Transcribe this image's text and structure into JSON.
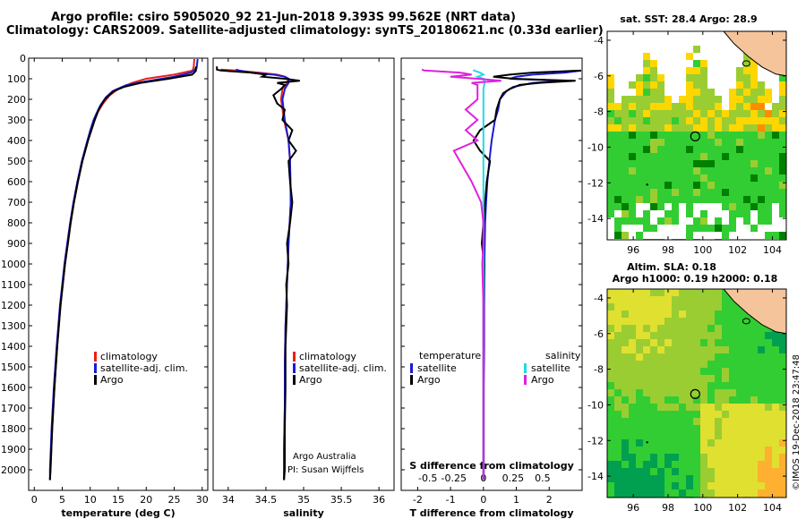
{
  "header": {
    "line1": "Argo profile: csiro 5905020_92 21-Jun-2018 9.393S 99.562E (NRT data)",
    "line2": "Climatology: CARS2009. Satellite-adjusted climatology: synTS_20180621.nc (0.33d earlier)"
  },
  "credits": {
    "imos": "©IMOS 19-Dec-2018 23:47:48",
    "argo": "Argo Australia",
    "pi": "PI: Susan Wijffels"
  },
  "colors": {
    "climatology": "#e8201c",
    "satellite": "#1a1ad6",
    "argo": "#000000",
    "sat_salinity": "#21d9e6",
    "argo_salinity": "#e020e0"
  },
  "chart_data": [
    {
      "id": "temperature",
      "type": "line",
      "title": "",
      "xlabel": "temperature (deg C)",
      "ylabel": "",
      "xlim": [
        -1,
        31
      ],
      "ylim": [
        2100,
        0
      ],
      "xticks": [
        0,
        5,
        10,
        15,
        20,
        25,
        30
      ],
      "xticklabels": [
        "0",
        "5",
        "10",
        "15",
        "20",
        "25",
        "30"
      ],
      "yticks": [
        0,
        100,
        200,
        300,
        400,
        500,
        600,
        700,
        800,
        900,
        1000,
        1100,
        1200,
        1300,
        1400,
        1500,
        1600,
        1700,
        1800,
        1900,
        2000
      ],
      "legend": [
        "climatology",
        "satellite-adj. clim.",
        "Argo"
      ],
      "legend_position": "center-right",
      "series": [
        {
          "name": "climatology",
          "color": "#e8201c",
          "depth": [
            0,
            40,
            60,
            80,
            100,
            120,
            150,
            180,
            220,
            260,
            300,
            350,
            400,
            500,
            600,
            700,
            800,
            900,
            1000,
            1200,
            1400,
            1600,
            1800,
            2000,
            2050
          ],
          "values": [
            28.6,
            28.5,
            28.3,
            25,
            20,
            17.5,
            15,
            13.5,
            12.3,
            11.4,
            10.8,
            10.2,
            9.6,
            8.6,
            7.8,
            7.1,
            6.5,
            6,
            5.5,
            4.7,
            4.1,
            3.6,
            3.2,
            2.9,
            2.8
          ]
        },
        {
          "name": "satellite-adj. clim.",
          "color": "#1a1ad6",
          "depth": [
            0,
            50,
            70,
            90,
            110,
            130,
            160,
            190,
            230,
            270,
            300,
            350,
            400,
            500,
            600,
            700,
            800,
            900,
            1000,
            1200,
            1400,
            1600,
            1800,
            2000,
            2050
          ],
          "values": [
            29.2,
            29,
            28,
            25,
            20.5,
            16.5,
            14,
            12.8,
            11.8,
            11.1,
            10.6,
            10,
            9.5,
            8.5,
            7.7,
            7,
            6.4,
            5.9,
            5.4,
            4.6,
            4,
            3.5,
            3.1,
            2.8,
            2.8
          ]
        },
        {
          "name": "Argo",
          "color": "#000000",
          "depth": [
            40,
            50,
            60,
            70,
            80,
            100,
            120,
            140,
            160,
            200,
            250,
            300,
            400,
            500,
            600,
            700,
            800,
            900,
            1000,
            1200,
            1400,
            1600,
            1800,
            2000,
            2050
          ],
          "values": [
            29,
            28.8,
            28.9,
            28.6,
            28.2,
            24,
            19,
            16,
            14.2,
            12.6,
            11.5,
            10.8,
            9.6,
            8.6,
            7.8,
            7.1,
            6.5,
            6,
            5.5,
            4.7,
            4.1,
            3.6,
            3.2,
            2.9,
            2.8
          ]
        }
      ]
    },
    {
      "id": "salinity",
      "type": "line",
      "xlabel": "salinity",
      "xlim": [
        33.8,
        36.2
      ],
      "ylim": [
        2100,
        0
      ],
      "xticks": [
        34,
        34.5,
        35,
        35.5,
        36
      ],
      "xticklabels": [
        "34",
        "34.5",
        "35",
        "35.5",
        "36"
      ],
      "legend": [
        "climatology",
        "satellite-adj. clim.",
        "Argo"
      ],
      "legend_position": "center-right",
      "series": [
        {
          "name": "climatology",
          "color": "#e8201c",
          "depth": [
            55,
            60,
            70,
            80,
            90,
            100,
            120,
            150,
            200,
            300,
            400,
            500,
            700,
            900,
            1100,
            1300,
            1500,
            1700,
            1900,
            2050
          ],
          "values": [
            33.9,
            34.1,
            34.4,
            34.65,
            34.75,
            34.8,
            34.78,
            34.72,
            34.7,
            34.74,
            34.8,
            34.82,
            34.83,
            34.8,
            34.78,
            34.76,
            34.75,
            34.75,
            34.74,
            34.74
          ]
        },
        {
          "name": "satellite-adj. clim.",
          "color": "#1a1ad6",
          "depth": [
            55,
            60,
            70,
            80,
            90,
            100,
            120,
            150,
            200,
            300,
            400,
            500,
            700,
            900,
            1100,
            1300,
            1500,
            1700,
            1900,
            2050
          ],
          "values": [
            34.1,
            34.15,
            34.3,
            34.6,
            34.75,
            34.8,
            34.8,
            34.75,
            34.72,
            34.75,
            34.8,
            34.82,
            34.83,
            34.8,
            34.78,
            34.76,
            34.75,
            34.75,
            34.74,
            34.74
          ]
        },
        {
          "name": "Argo",
          "color": "#000000",
          "depth": [
            40,
            55,
            60,
            70,
            80,
            90,
            100,
            110,
            120,
            130,
            150,
            180,
            220,
            250,
            300,
            350,
            400,
            450,
            500,
            600,
            700,
            800,
            900,
            1000,
            1100,
            1200,
            1400,
            1600,
            1800,
            2000,
            2050
          ],
          "values": [
            33.85,
            33.85,
            33.9,
            34.3,
            34.5,
            34.45,
            34.75,
            34.95,
            34.65,
            34.75,
            34.7,
            34.6,
            34.65,
            34.75,
            34.72,
            34.85,
            34.8,
            34.9,
            34.8,
            34.82,
            34.85,
            34.82,
            34.78,
            34.8,
            34.77,
            34.78,
            34.76,
            34.76,
            34.75,
            34.75,
            34.74
          ]
        }
      ]
    },
    {
      "id": "difference",
      "type": "line",
      "xlabel": "T difference from climatology",
      "xlabel2": "S difference from climatology",
      "xlim": [
        -2.5,
        3
      ],
      "ylim": [
        2100,
        0
      ],
      "xticks": [
        -2,
        -1,
        0,
        1,
        2
      ],
      "xticklabels": [
        "-2",
        "-1",
        "0",
        "1",
        "2"
      ],
      "x2ticklabels": [
        "-0.5",
        "-0.25",
        "0",
        "0.25",
        "0.5"
      ],
      "legend_temperature_title": "temperature",
      "legend_salinity_title": "salinity",
      "legend_temperature": [
        "satellite",
        "Argo"
      ],
      "legend_salinity": [
        "satellite",
        "Argo"
      ],
      "series": [
        {
          "name": "T satellite",
          "color": "#1a1ad6",
          "depth": [
            60,
            70,
            80,
            90,
            100,
            110,
            120,
            140,
            160,
            180,
            200,
            250,
            300,
            400,
            500,
            600,
            700,
            800,
            900,
            1000,
            1200,
            1400,
            1600,
            1800,
            2000,
            2050
          ],
          "values": [
            3,
            2.5,
            1.5,
            1.0,
            0.8,
            2.5,
            1.5,
            0.9,
            0.7,
            0.6,
            0.5,
            0.45,
            0.35,
            0.25,
            0.18,
            0.12,
            0.08,
            0.05,
            0.04,
            0.03,
            0.02,
            0.02,
            0.01,
            0.01,
            0.01,
            0.01
          ]
        },
        {
          "name": "T Argo",
          "color": "#000000",
          "depth": [
            60,
            70,
            80,
            90,
            100,
            110,
            120,
            130,
            150,
            170,
            200,
            250,
            300,
            350,
            400,
            450,
            500,
            600,
            700,
            800,
            900,
            1000,
            1200,
            1400,
            1600,
            1800,
            2000,
            2050
          ],
          "values": [
            3,
            1.5,
            0.8,
            0.3,
            0.9,
            2.8,
            1.7,
            1.1,
            0.8,
            0.6,
            0.5,
            0.4,
            0.35,
            -0.1,
            -0.3,
            -0.1,
            0.2,
            0.1,
            0.05,
            0.0,
            -0.05,
            0.02,
            0.0,
            0.0,
            0.0,
            0.0,
            0.0,
            0.0
          ]
        },
        {
          "name": "S satellite",
          "color": "#21d9e6",
          "depth": [
            55,
            60,
            70,
            80,
            90,
            100,
            120,
            150,
            200,
            300,
            500,
            800,
            1100,
            1400,
            1700,
            2000,
            2050
          ],
          "values": [
            -0.08,
            -0.08,
            -0.03,
            0,
            -0.05,
            0,
            0.01,
            0,
            0,
            0,
            0,
            0,
            0,
            0,
            0,
            0,
            0
          ]
        },
        {
          "name": "S Argo",
          "color": "#e020e0",
          "depth": [
            55,
            60,
            70,
            80,
            90,
            100,
            110,
            120,
            130,
            150,
            200,
            250,
            300,
            350,
            400,
            450,
            500,
            550,
            600,
            700,
            800,
            900,
            1000,
            1200,
            1500,
            1800,
            2000,
            2050
          ],
          "values": [
            -0.52,
            -0.5,
            -0.2,
            -0.1,
            -0.28,
            -0.05,
            0.15,
            -0.1,
            -0.05,
            -0.05,
            -0.05,
            -0.15,
            -0.05,
            -0.15,
            -0.05,
            -0.25,
            -0.2,
            -0.15,
            -0.1,
            -0.02,
            0,
            0,
            -0.01,
            0,
            0,
            0,
            0,
            0
          ]
        }
      ]
    },
    {
      "id": "sst-map",
      "type": "heatmap",
      "title": "sat. SST: 28.4 Argo: 28.9",
      "xticks": [
        96,
        98,
        100,
        102,
        104
      ],
      "yticks": [
        -4,
        -6,
        -8,
        -10,
        -12,
        -14
      ],
      "xlim": [
        94.5,
        104.8
      ],
      "ylim": [
        -15.2,
        -3.5
      ],
      "argo_position": [
        99.562,
        -9.393
      ],
      "colormap": [
        "#008000",
        "#32cd32",
        "#9acd32",
        "#ffd700",
        "#ff8c00",
        "#cc2200"
      ],
      "no_data_color": "#ffffff",
      "land_color": "#f5c49a"
    },
    {
      "id": "sla-map",
      "type": "heatmap",
      "title": "Altim. SLA: 0.18",
      "subtitle": "Argo h1000: 0.19 h2000: 0.18",
      "xticks": [
        96,
        98,
        100,
        102,
        104
      ],
      "yticks": [
        -4,
        -6,
        -8,
        -10,
        -12,
        -14
      ],
      "xlim": [
        94.5,
        104.8
      ],
      "ylim": [
        -15.2,
        -3.5
      ],
      "argo_position": [
        99.562,
        -9.393
      ],
      "colormap": [
        "#00a050",
        "#32cd32",
        "#9acd32",
        "#e0e030",
        "#ffb030"
      ],
      "land_color": "#f5c49a"
    }
  ]
}
